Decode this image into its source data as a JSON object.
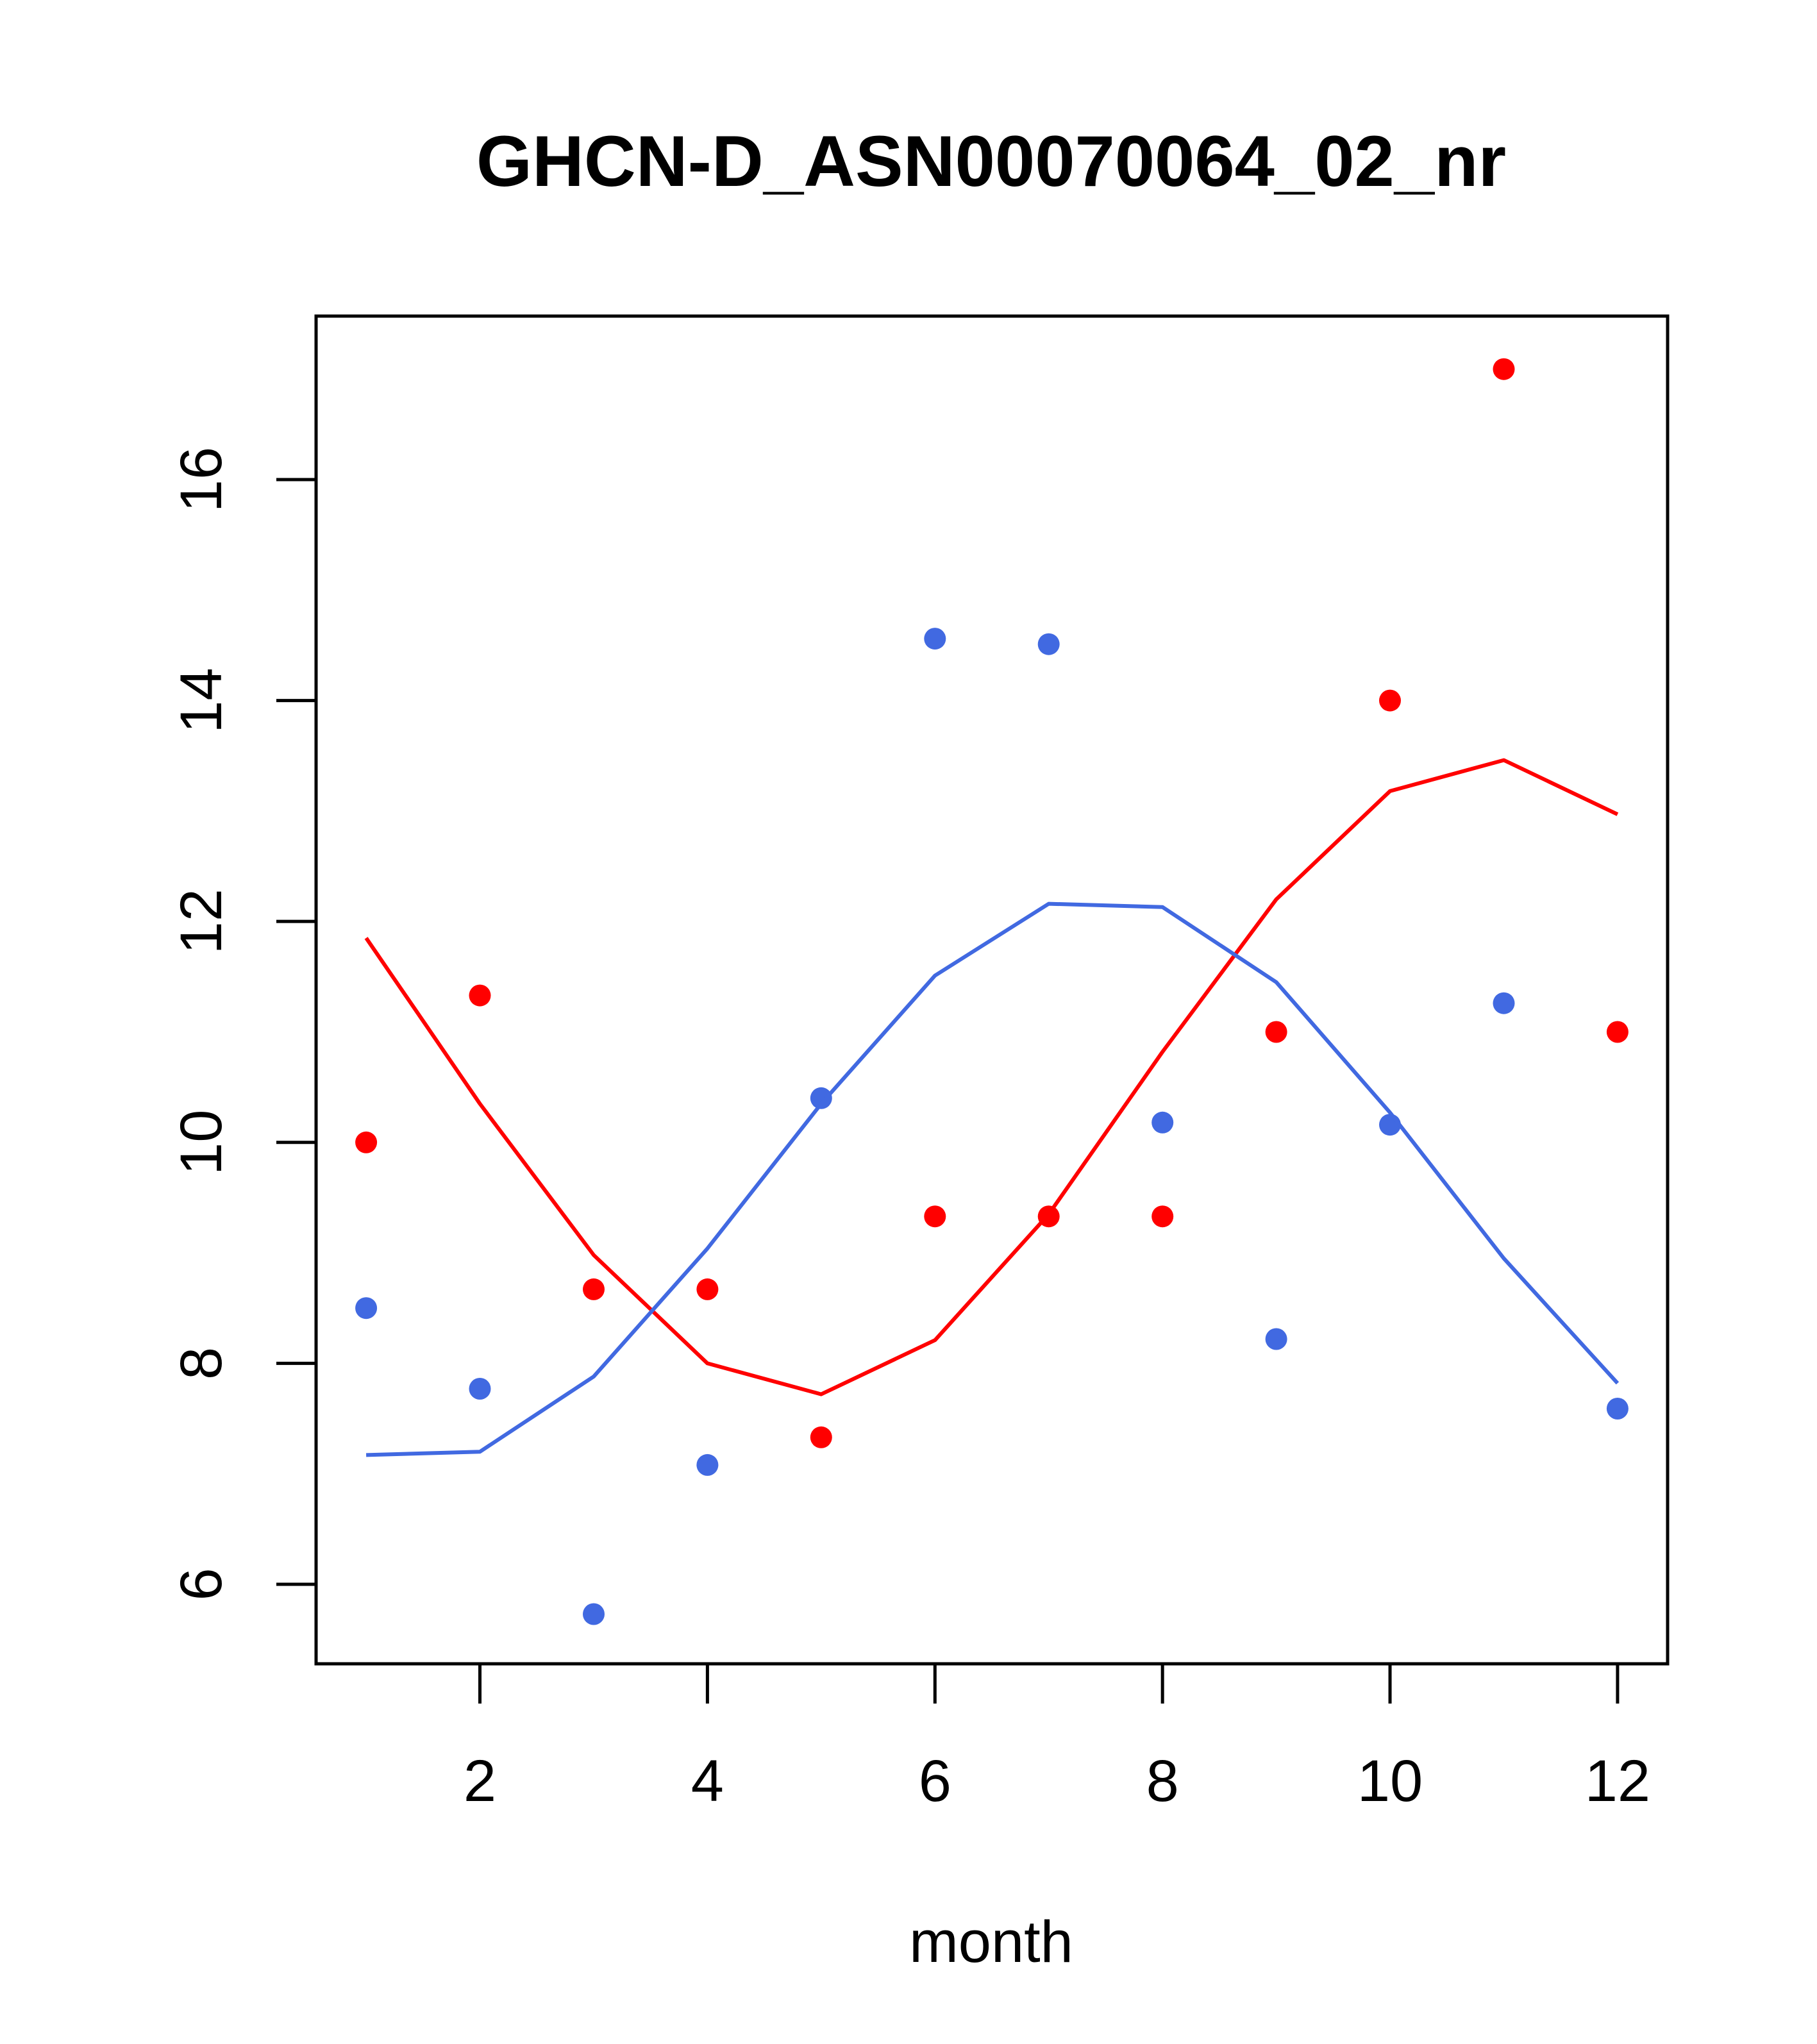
{
  "chart_data": {
    "type": "scatter",
    "title": "GHCN-D_ASN00070064_02_nr",
    "xlabel": "month",
    "ylabel": "",
    "xlim": [
      0.56,
      12.44
    ],
    "ylim": [
      5.28,
      17.48
    ],
    "x_ticks": [
      2,
      4,
      6,
      8,
      10,
      12
    ],
    "y_ticks": [
      6,
      8,
      10,
      12,
      14,
      16
    ],
    "grid": false,
    "series": [
      {
        "color": "#ff0000",
        "kind": "points",
        "x": [
          1,
          2,
          3,
          4,
          5,
          6,
          7,
          8,
          9,
          10,
          11,
          12
        ],
        "values": [
          10.0,
          11.33,
          8.67,
          8.67,
          7.33,
          9.33,
          9.33,
          9.33,
          11.0,
          14.0,
          17.0,
          11.0
        ]
      },
      {
        "color": "#4169e1",
        "kind": "points",
        "x": [
          1,
          2,
          3,
          4,
          5,
          6,
          7,
          8,
          9,
          10,
          11,
          12
        ],
        "values": [
          8.5,
          7.77,
          5.73,
          7.08,
          10.4,
          14.56,
          14.51,
          10.18,
          8.22,
          10.16,
          11.26,
          7.59
        ]
      },
      {
        "color": "#ff0000",
        "kind": "line",
        "x": [
          1,
          2,
          3,
          4,
          5,
          6,
          7,
          8,
          9,
          10,
          11,
          12
        ],
        "values": [
          11.85,
          10.35,
          8.98,
          8.0,
          7.72,
          8.21,
          9.35,
          10.82,
          12.2,
          13.18,
          13.46,
          12.97
        ]
      },
      {
        "color": "#4169e1",
        "kind": "line",
        "x": [
          1,
          2,
          3,
          4,
          5,
          6,
          7,
          8,
          9,
          10,
          11,
          12
        ],
        "values": [
          7.17,
          7.2,
          7.88,
          9.04,
          10.35,
          11.51,
          12.16,
          12.13,
          11.45,
          10.27,
          8.95,
          7.82
        ]
      }
    ]
  }
}
